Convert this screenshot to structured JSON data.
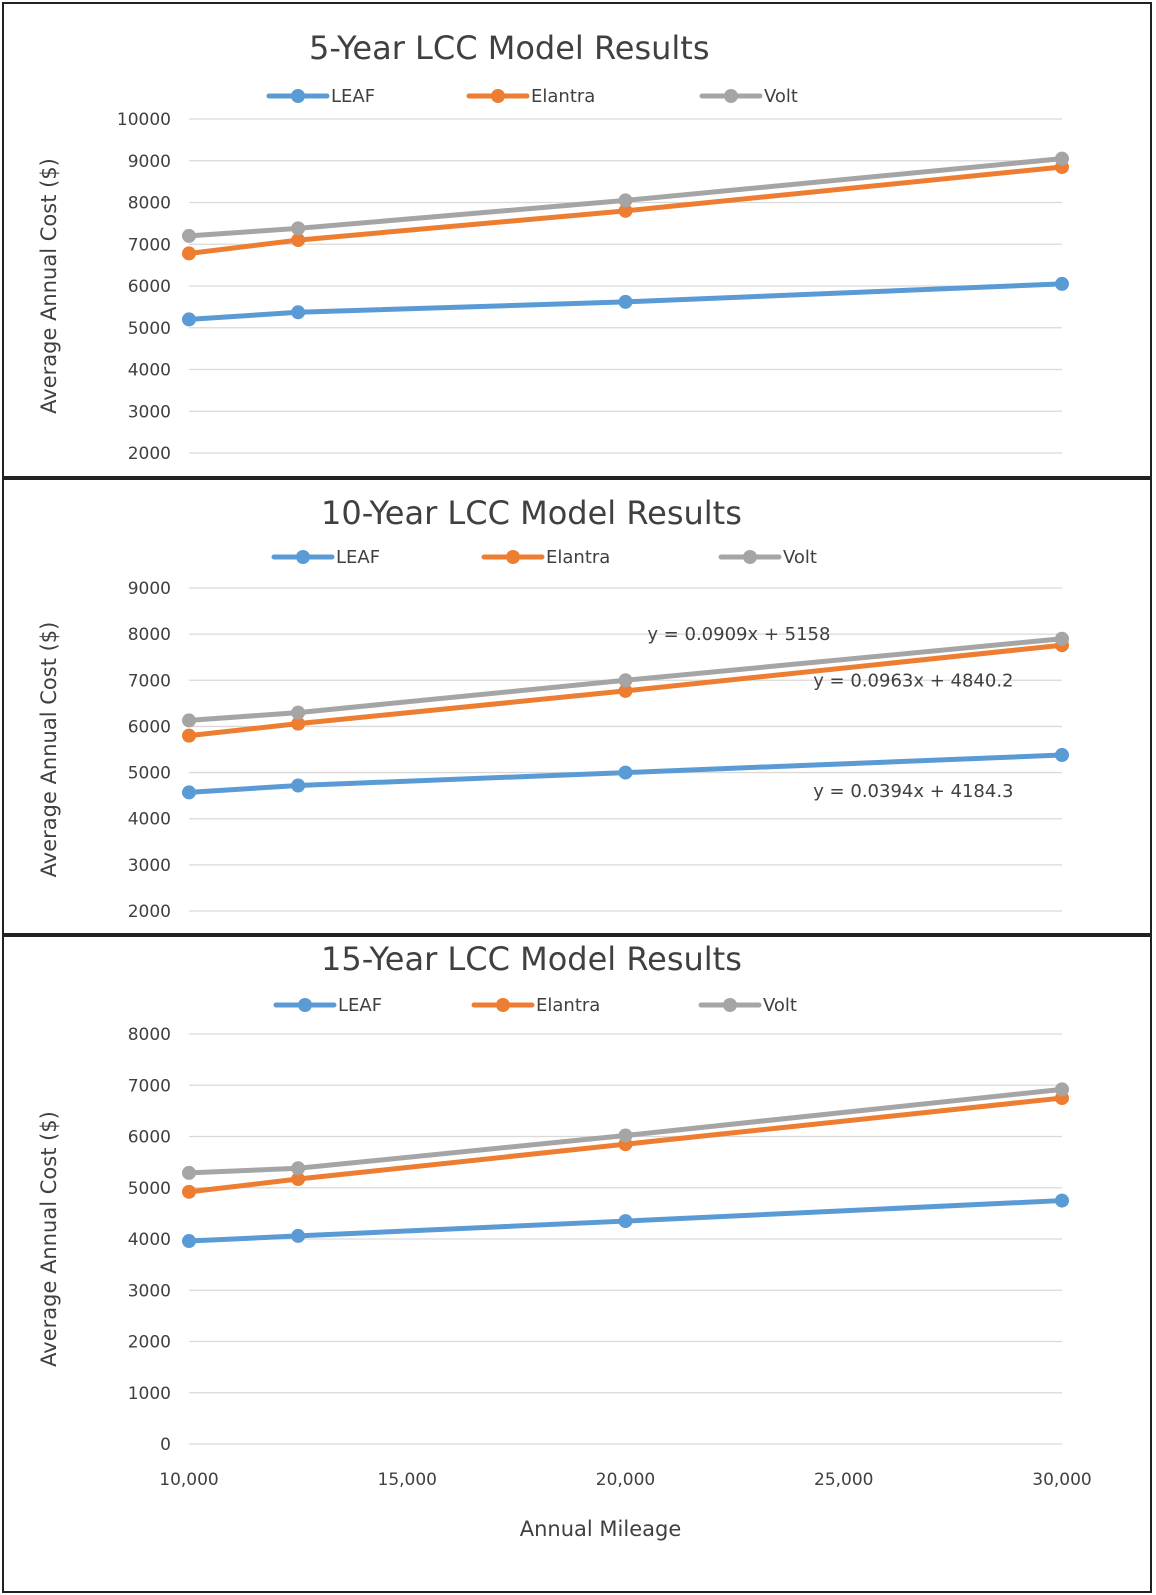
{
  "chart_data": [
    {
      "type": "line",
      "title": "5-Year LCC Model Results",
      "xlabel": "",
      "ylabel": "Average Annual Cost ($)",
      "xlim": [
        10000,
        30000
      ],
      "ylim": [
        2000,
        10000
      ],
      "yticks": [
        "2000",
        "3000",
        "4000",
        "5000",
        "6000",
        "7000",
        "8000",
        "9000",
        "10000"
      ],
      "xticks": [],
      "grid": true,
      "legend": "top",
      "annotations": [],
      "series": [
        {
          "name": "LEAF",
          "color": "#5b9bd5",
          "x": [
            10000,
            12500,
            20000,
            30000
          ],
          "y": [
            5200,
            5370,
            5620,
            6050
          ]
        },
        {
          "name": "Elantra",
          "color": "#ed7d31",
          "x": [
            10000,
            12500,
            20000,
            30000
          ],
          "y": [
            6780,
            7100,
            7800,
            8850
          ]
        },
        {
          "name": "Volt",
          "color": "#a5a5a5",
          "x": [
            10000,
            12500,
            20000,
            30000
          ],
          "y": [
            7200,
            7380,
            8050,
            9050
          ]
        }
      ]
    },
    {
      "type": "line",
      "title": "10-Year LCC Model Results",
      "xlabel": "",
      "ylabel": "Average Annual Cost ($)",
      "xlim": [
        10000,
        30000
      ],
      "ylim": [
        2000,
        9000
      ],
      "yticks": [
        "2000",
        "3000",
        "4000",
        "5000",
        "6000",
        "7000",
        "8000",
        "9000"
      ],
      "xticks": [],
      "grid": true,
      "legend": "top",
      "annotations": [
        {
          "text": "y = 0.0909x + 5158",
          "x": 20500,
          "y": 8000
        },
        {
          "text": "y = 0.0963x + 4840.2",
          "x": 24300,
          "y": 7000
        },
        {
          "text": "y = 0.0394x + 4184.3",
          "x": 24300,
          "y": 4600
        }
      ],
      "series": [
        {
          "name": "LEAF",
          "color": "#5b9bd5",
          "x": [
            10000,
            12500,
            20000,
            30000
          ],
          "y": [
            4570,
            4720,
            5000,
            5380
          ]
        },
        {
          "name": "Elantra",
          "color": "#ed7d31",
          "x": [
            10000,
            12500,
            20000,
            30000
          ],
          "y": [
            5800,
            6060,
            6770,
            7760
          ]
        },
        {
          "name": "Volt",
          "color": "#a5a5a5",
          "x": [
            10000,
            12500,
            20000,
            30000
          ],
          "y": [
            6130,
            6300,
            7000,
            7900
          ]
        }
      ]
    },
    {
      "type": "line",
      "title": "15-Year LCC Model Results",
      "xlabel": "Annual Mileage",
      "ylabel": "Average Annual Cost ($)",
      "xlim": [
        10000,
        30000
      ],
      "ylim": [
        0,
        8000
      ],
      "yticks": [
        "0",
        "1000",
        "2000",
        "3000",
        "4000",
        "5000",
        "6000",
        "7000",
        "8000"
      ],
      "xticks": [
        "10,000",
        "15,000",
        "20,000",
        "25,000",
        "30,000"
      ],
      "grid": true,
      "legend": "top",
      "annotations": [],
      "series": [
        {
          "name": "LEAF",
          "color": "#5b9bd5",
          "x": [
            10000,
            12500,
            20000,
            30000
          ],
          "y": [
            3960,
            4060,
            4350,
            4750
          ]
        },
        {
          "name": "Elantra",
          "color": "#ed7d31",
          "x": [
            10000,
            12500,
            20000,
            30000
          ],
          "y": [
            4920,
            5170,
            5850,
            6750
          ]
        },
        {
          "name": "Volt",
          "color": "#a5a5a5",
          "x": [
            10000,
            12500,
            20000,
            30000
          ],
          "y": [
            5290,
            5380,
            6020,
            6920
          ]
        }
      ]
    }
  ]
}
